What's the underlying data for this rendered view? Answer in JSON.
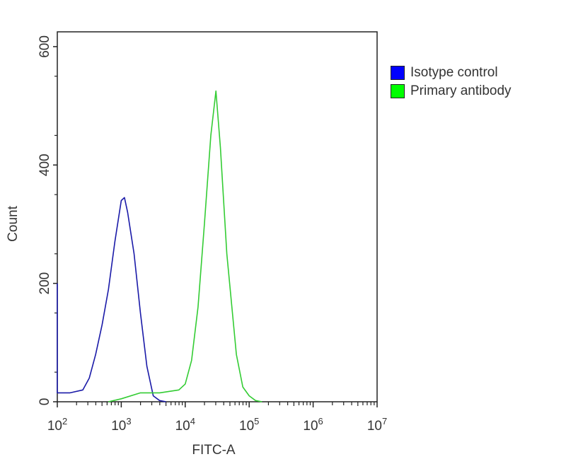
{
  "chart_data": {
    "type": "line",
    "title": "",
    "xlabel": "FITC-A",
    "ylabel": "Count",
    "xscale": "log",
    "xlim": [
      100,
      10000000
    ],
    "ylim": [
      0,
      625
    ],
    "xticks": [
      {
        "base": "10",
        "exp": "2"
      },
      {
        "base": "10",
        "exp": "3"
      },
      {
        "base": "10",
        "exp": "4"
      },
      {
        "base": "10",
        "exp": "5"
      },
      {
        "base": "10",
        "exp": "6"
      },
      {
        "base": "10",
        "exp": "7"
      }
    ],
    "yticks": [
      "0",
      "200",
      "400",
      "600"
    ],
    "legend_position": "right",
    "grid": false,
    "series": [
      {
        "name": "Isotype control",
        "color": "#1a1aa8",
        "swatch": "#0000ff",
        "x": [
          100,
          100,
          158,
          251,
          316,
          398,
          501,
          631,
          794,
          1000,
          1122,
          1259,
          1585,
          1995,
          2512,
          3162,
          3981,
          5012
        ],
        "y": [
          200,
          15,
          15,
          20,
          40,
          80,
          130,
          190,
          270,
          340,
          345,
          320,
          250,
          150,
          60,
          10,
          2,
          0
        ]
      },
      {
        "name": "Primary antibody",
        "color": "#33cc33",
        "swatch": "#00ff00",
        "x": [
          631,
          1000,
          1995,
          3981,
          7943,
          10000,
          12589,
          15849,
          19953,
          25119,
          30200,
          35481,
          44668,
          63096,
          79433,
          100000,
          125893,
          158489
        ],
        "y": [
          0,
          5,
          15,
          15,
          20,
          30,
          70,
          160,
          300,
          450,
          525,
          430,
          250,
          80,
          25,
          10,
          2,
          0
        ]
      }
    ]
  }
}
